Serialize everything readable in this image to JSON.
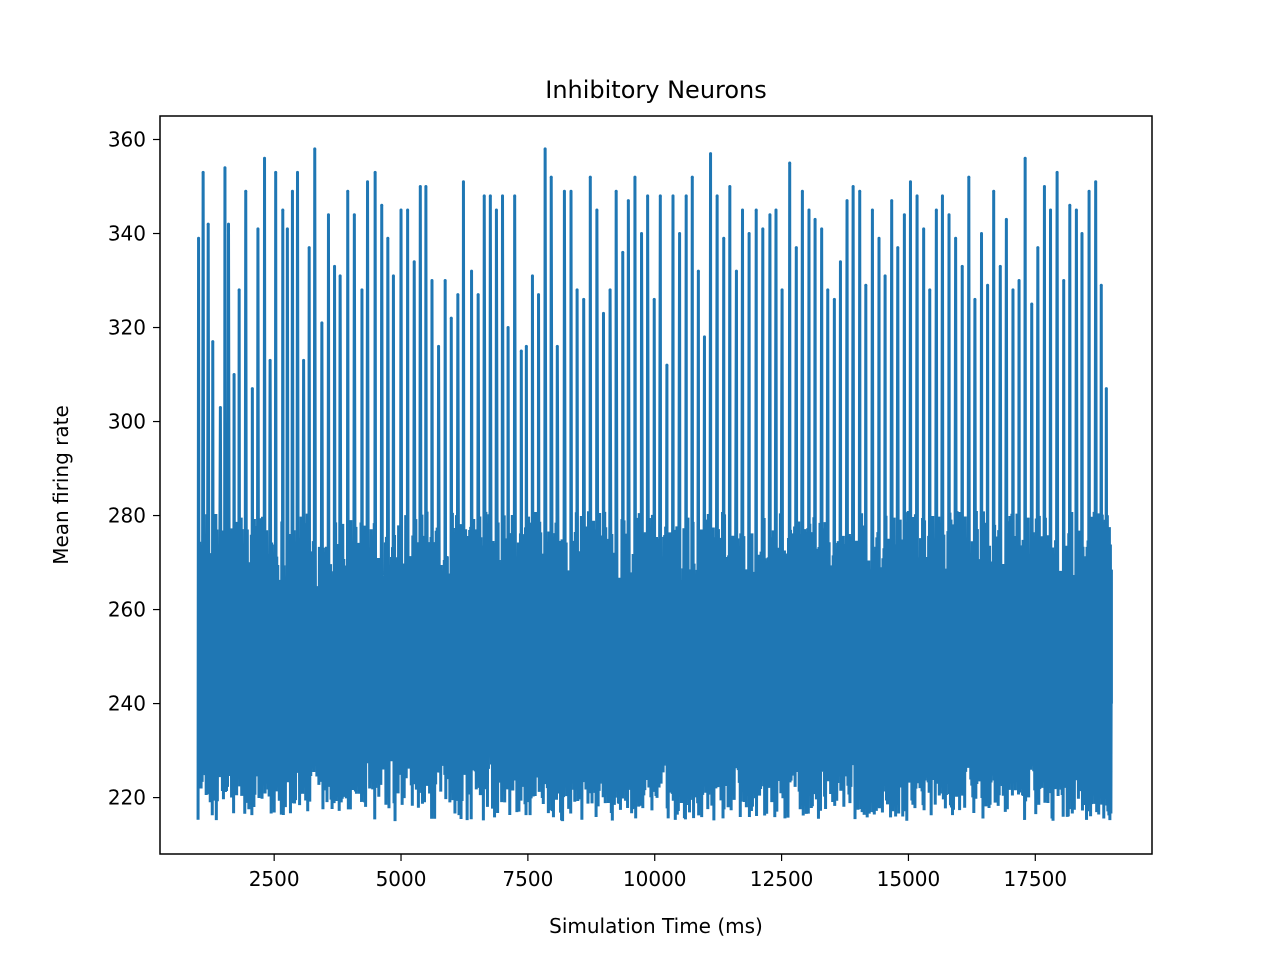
{
  "chart_data": {
    "type": "line",
    "title": "Inhibitory Neurons",
    "xlabel": "Simulation Time (ms)",
    "ylabel": "Mean firing rate",
    "xlim": [
      250,
      19800
    ],
    "ylim": [
      208,
      365
    ],
    "x_ticks": [
      2500,
      5000,
      7500,
      10000,
      12500,
      15000,
      17500
    ],
    "x_tick_labels": [
      "2500",
      "5000",
      "7500",
      "10000",
      "12500",
      "15000",
      "17500"
    ],
    "y_ticks": [
      220,
      240,
      260,
      280,
      300,
      320,
      340,
      360
    ],
    "y_tick_labels": [
      "220",
      "240",
      "260",
      "280",
      "300",
      "320",
      "340",
      "360"
    ],
    "grid": false,
    "series": [
      {
        "name": "",
        "color": "#1f77b4",
        "x_range": [
          1000,
          19000
        ],
        "sample_count": 1800,
        "baseline_range": [
          215,
          275
        ],
        "spike_peaks": [
          {
            "x": 1010,
            "y": 339
          },
          {
            "x": 1100,
            "y": 353
          },
          {
            "x": 1200,
            "y": 342
          },
          {
            "x": 1290,
            "y": 317
          },
          {
            "x": 1440,
            "y": 303
          },
          {
            "x": 1530,
            "y": 354
          },
          {
            "x": 1600,
            "y": 342
          },
          {
            "x": 1710,
            "y": 310
          },
          {
            "x": 1810,
            "y": 328
          },
          {
            "x": 1940,
            "y": 349
          },
          {
            "x": 2070,
            "y": 307
          },
          {
            "x": 2180,
            "y": 341
          },
          {
            "x": 2310,
            "y": 356
          },
          {
            "x": 2420,
            "y": 313
          },
          {
            "x": 2530,
            "y": 353
          },
          {
            "x": 2670,
            "y": 345
          },
          {
            "x": 2760,
            "y": 341
          },
          {
            "x": 2860,
            "y": 349
          },
          {
            "x": 2960,
            "y": 353
          },
          {
            "x": 3080,
            "y": 313
          },
          {
            "x": 3190,
            "y": 337
          },
          {
            "x": 3300,
            "y": 358
          },
          {
            "x": 3440,
            "y": 321
          },
          {
            "x": 3570,
            "y": 344
          },
          {
            "x": 3690,
            "y": 333
          },
          {
            "x": 3800,
            "y": 331
          },
          {
            "x": 3950,
            "y": 349
          },
          {
            "x": 4080,
            "y": 344
          },
          {
            "x": 4230,
            "y": 328
          },
          {
            "x": 4340,
            "y": 351
          },
          {
            "x": 4490,
            "y": 353
          },
          {
            "x": 4620,
            "y": 346
          },
          {
            "x": 4740,
            "y": 339
          },
          {
            "x": 4850,
            "y": 331
          },
          {
            "x": 5000,
            "y": 345
          },
          {
            "x": 5130,
            "y": 345
          },
          {
            "x": 5260,
            "y": 334
          },
          {
            "x": 5380,
            "y": 350
          },
          {
            "x": 5490,
            "y": 350
          },
          {
            "x": 5610,
            "y": 330
          },
          {
            "x": 5740,
            "y": 316
          },
          {
            "x": 5870,
            "y": 330
          },
          {
            "x": 5990,
            "y": 322
          },
          {
            "x": 6120,
            "y": 327
          },
          {
            "x": 6230,
            "y": 351
          },
          {
            "x": 6390,
            "y": 332
          },
          {
            "x": 6520,
            "y": 327
          },
          {
            "x": 6640,
            "y": 348
          },
          {
            "x": 6760,
            "y": 348
          },
          {
            "x": 6880,
            "y": 345
          },
          {
            "x": 7000,
            "y": 348
          },
          {
            "x": 7110,
            "y": 320
          },
          {
            "x": 7240,
            "y": 348
          },
          {
            "x": 7370,
            "y": 315
          },
          {
            "x": 7470,
            "y": 316
          },
          {
            "x": 7590,
            "y": 331
          },
          {
            "x": 7710,
            "y": 327
          },
          {
            "x": 7840,
            "y": 358
          },
          {
            "x": 7960,
            "y": 352
          },
          {
            "x": 8080,
            "y": 316
          },
          {
            "x": 8220,
            "y": 349
          },
          {
            "x": 8350,
            "y": 349
          },
          {
            "x": 8470,
            "y": 328
          },
          {
            "x": 8600,
            "y": 326
          },
          {
            "x": 8730,
            "y": 352
          },
          {
            "x": 8860,
            "y": 345
          },
          {
            "x": 8990,
            "y": 323
          },
          {
            "x": 9120,
            "y": 328
          },
          {
            "x": 9240,
            "y": 349
          },
          {
            "x": 9370,
            "y": 336
          },
          {
            "x": 9480,
            "y": 347
          },
          {
            "x": 9610,
            "y": 352
          },
          {
            "x": 9740,
            "y": 340
          },
          {
            "x": 9860,
            "y": 348
          },
          {
            "x": 9990,
            "y": 326
          },
          {
            "x": 10110,
            "y": 348
          },
          {
            "x": 10240,
            "y": 312
          },
          {
            "x": 10360,
            "y": 348
          },
          {
            "x": 10490,
            "y": 340
          },
          {
            "x": 10620,
            "y": 348
          },
          {
            "x": 10740,
            "y": 352
          },
          {
            "x": 10860,
            "y": 332
          },
          {
            "x": 10980,
            "y": 318
          },
          {
            "x": 11100,
            "y": 357
          },
          {
            "x": 11230,
            "y": 348
          },
          {
            "x": 11360,
            "y": 339
          },
          {
            "x": 11480,
            "y": 350
          },
          {
            "x": 11610,
            "y": 332
          },
          {
            "x": 11730,
            "y": 345
          },
          {
            "x": 11860,
            "y": 340
          },
          {
            "x": 12000,
            "y": 345
          },
          {
            "x": 12130,
            "y": 341
          },
          {
            "x": 12270,
            "y": 344
          },
          {
            "x": 12390,
            "y": 345
          },
          {
            "x": 12510,
            "y": 328
          },
          {
            "x": 12660,
            "y": 355
          },
          {
            "x": 12790,
            "y": 337
          },
          {
            "x": 12910,
            "y": 349
          },
          {
            "x": 13040,
            "y": 345
          },
          {
            "x": 13160,
            "y": 343
          },
          {
            "x": 13290,
            "y": 341
          },
          {
            "x": 13410,
            "y": 328
          },
          {
            "x": 13540,
            "y": 326
          },
          {
            "x": 13660,
            "y": 334
          },
          {
            "x": 13790,
            "y": 347
          },
          {
            "x": 13910,
            "y": 350
          },
          {
            "x": 14040,
            "y": 349
          },
          {
            "x": 14160,
            "y": 329
          },
          {
            "x": 14290,
            "y": 345
          },
          {
            "x": 14420,
            "y": 339
          },
          {
            "x": 14540,
            "y": 331
          },
          {
            "x": 14670,
            "y": 347
          },
          {
            "x": 14790,
            "y": 337
          },
          {
            "x": 14920,
            "y": 344
          },
          {
            "x": 15040,
            "y": 351
          },
          {
            "x": 15170,
            "y": 348
          },
          {
            "x": 15300,
            "y": 341
          },
          {
            "x": 15420,
            "y": 328
          },
          {
            "x": 15550,
            "y": 345
          },
          {
            "x": 15670,
            "y": 348
          },
          {
            "x": 15800,
            "y": 344
          },
          {
            "x": 15930,
            "y": 339
          },
          {
            "x": 16060,
            "y": 333
          },
          {
            "x": 16190,
            "y": 352
          },
          {
            "x": 16310,
            "y": 326
          },
          {
            "x": 16440,
            "y": 340
          },
          {
            "x": 16560,
            "y": 329
          },
          {
            "x": 16680,
            "y": 349
          },
          {
            "x": 16810,
            "y": 333
          },
          {
            "x": 16930,
            "y": 343
          },
          {
            "x": 17060,
            "y": 328
          },
          {
            "x": 17180,
            "y": 330
          },
          {
            "x": 17300,
            "y": 356
          },
          {
            "x": 17430,
            "y": 325
          },
          {
            "x": 17550,
            "y": 337
          },
          {
            "x": 17680,
            "y": 350
          },
          {
            "x": 17800,
            "y": 345
          },
          {
            "x": 17930,
            "y": 353
          },
          {
            "x": 18060,
            "y": 330
          },
          {
            "x": 18180,
            "y": 346
          },
          {
            "x": 18310,
            "y": 345
          },
          {
            "x": 18420,
            "y": 340
          },
          {
            "x": 18560,
            "y": 349
          },
          {
            "x": 18690,
            "y": 351
          },
          {
            "x": 18800,
            "y": 329
          },
          {
            "x": 18900,
            "y": 307
          }
        ],
        "end_point": {
          "x": 19000,
          "y": 240
        }
      }
    ]
  }
}
